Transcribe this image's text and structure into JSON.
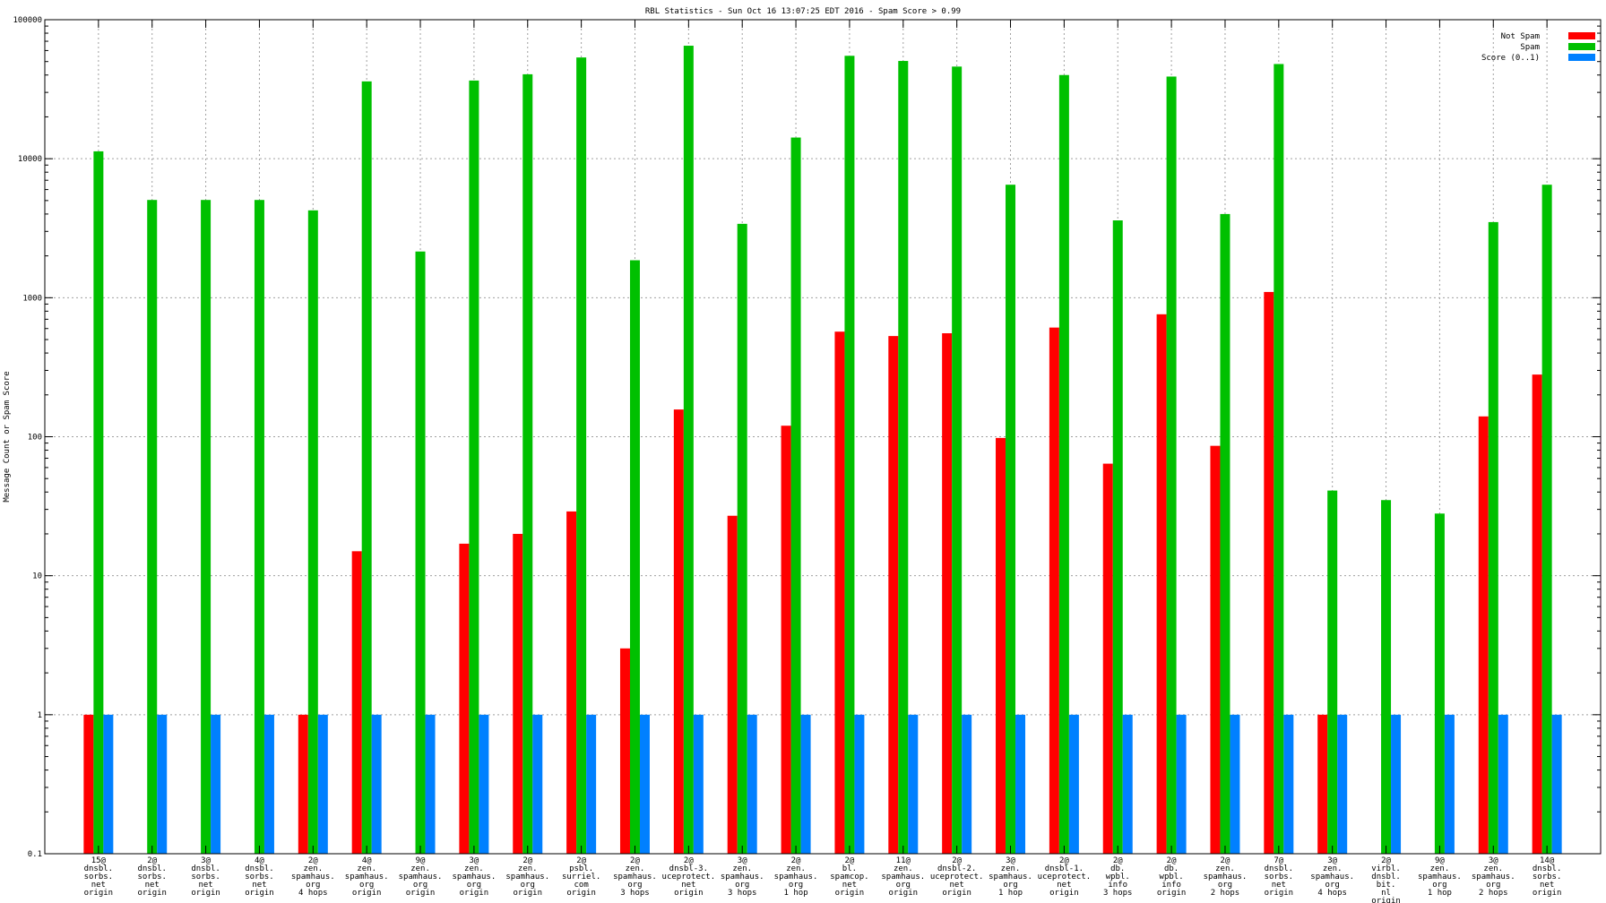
{
  "chart_data": {
    "type": "bar",
    "title": "RBL Statistics - Sun Oct 16 13:07:25 EDT 2016 - Spam Score > 0.99",
    "ylabel": "Message Count or Spam Score",
    "xlabel": "",
    "yscale": "log",
    "ylim": [
      0.1,
      100000
    ],
    "yticks": [
      {
        "value": 0.1,
        "label": "0.1"
      },
      {
        "value": 1,
        "label": "1"
      },
      {
        "value": 10,
        "label": "10"
      },
      {
        "value": 100,
        "label": "100"
      },
      {
        "value": 1000,
        "label": "1000"
      },
      {
        "value": 10000,
        "label": "10000"
      },
      {
        "value": 100000,
        "label": "100000"
      }
    ],
    "grid": true,
    "legend_position": "top-right",
    "categories": [
      [
        "15@",
        "dnsbl.",
        "sorbs.",
        "net",
        "origin"
      ],
      [
        "2@",
        "dnsbl.",
        "sorbs.",
        "net",
        "origin"
      ],
      [
        "3@",
        "dnsbl.",
        "sorbs.",
        "net",
        "origin"
      ],
      [
        "4@",
        "dnsbl.",
        "sorbs.",
        "net",
        "origin"
      ],
      [
        "2@",
        "zen.",
        "spamhaus.",
        "org",
        "4 hops"
      ],
      [
        "4@",
        "zen.",
        "spamhaus.",
        "org",
        "origin"
      ],
      [
        "9@",
        "zen.",
        "spamhaus.",
        "org",
        "origin"
      ],
      [
        "3@",
        "zen.",
        "spamhaus.",
        "org",
        "origin"
      ],
      [
        "2@",
        "zen.",
        "spamhaus.",
        "org",
        "origin"
      ],
      [
        "2@",
        "psbl.",
        "surriel.",
        "com",
        "origin"
      ],
      [
        "2@",
        "zen.",
        "spamhaus.",
        "org",
        "3 hops"
      ],
      [
        "2@",
        "dnsbl-3.",
        "uceprotect.",
        "net",
        "origin"
      ],
      [
        "3@",
        "zen.",
        "spamhaus.",
        "org",
        "3 hops"
      ],
      [
        "2@",
        "zen.",
        "spamhaus.",
        "org",
        "1 hop"
      ],
      [
        "2@",
        "bl.",
        "spamcop.",
        "net",
        "origin"
      ],
      [
        "11@",
        "zen.",
        "spamhaus.",
        "org",
        "origin"
      ],
      [
        "2@",
        "dnsbl-2.",
        "uceprotect.",
        "net",
        "origin"
      ],
      [
        "3@",
        "zen.",
        "spamhaus.",
        "org",
        "1 hop"
      ],
      [
        "2@",
        "dnsbl-1.",
        "uceprotect.",
        "net",
        "origin"
      ],
      [
        "2@",
        "db.",
        "wpbl.",
        "info",
        "3 hops"
      ],
      [
        "2@",
        "db.",
        "wpbl.",
        "info",
        "origin"
      ],
      [
        "2@",
        "zen.",
        "spamhaus.",
        "org",
        "2 hops"
      ],
      [
        "7@",
        "dnsbl.",
        "sorbs.",
        "net",
        "origin"
      ],
      [
        "3@",
        "zen.",
        "spamhaus.",
        "org",
        "4 hops"
      ],
      [
        "2@",
        "virbl.",
        "dnsbl.",
        "bit.",
        "nl",
        "origin"
      ],
      [
        "9@",
        "zen.",
        "spamhaus.",
        "org",
        "1 hop"
      ],
      [
        "3@",
        "zen.",
        "spamhaus.",
        "org",
        "2 hops"
      ],
      [
        "14@",
        "dnsbl.",
        "sorbs.",
        "net",
        "origin"
      ]
    ],
    "series": [
      {
        "name": "Not Spam",
        "color": "#ff0000",
        "values": [
          1,
          null,
          null,
          null,
          1,
          15,
          null,
          17,
          20,
          29,
          3,
          157,
          27,
          120,
          570,
          530,
          555,
          98,
          610,
          64,
          760,
          86,
          1100,
          1,
          null,
          null,
          140,
          280
        ]
      },
      {
        "name": "Spam",
        "color": "#00c000",
        "values": [
          11300,
          5050,
          5050,
          5050,
          4250,
          36000,
          2150,
          36500,
          40500,
          53500,
          1860,
          65000,
          3400,
          14200,
          55000,
          50500,
          46000,
          6500,
          40000,
          3600,
          39000,
          4000,
          48000,
          41,
          35,
          28,
          3500,
          6500
        ]
      },
      {
        "name": "Score (0..1)",
        "color": "#0080ff",
        "values": [
          1,
          1,
          1,
          1,
          1,
          1,
          1,
          1,
          1,
          1,
          1,
          1,
          1,
          1,
          1,
          1,
          1,
          1,
          1,
          1,
          1,
          1,
          1,
          1,
          1,
          1,
          1,
          1
        ]
      }
    ]
  }
}
